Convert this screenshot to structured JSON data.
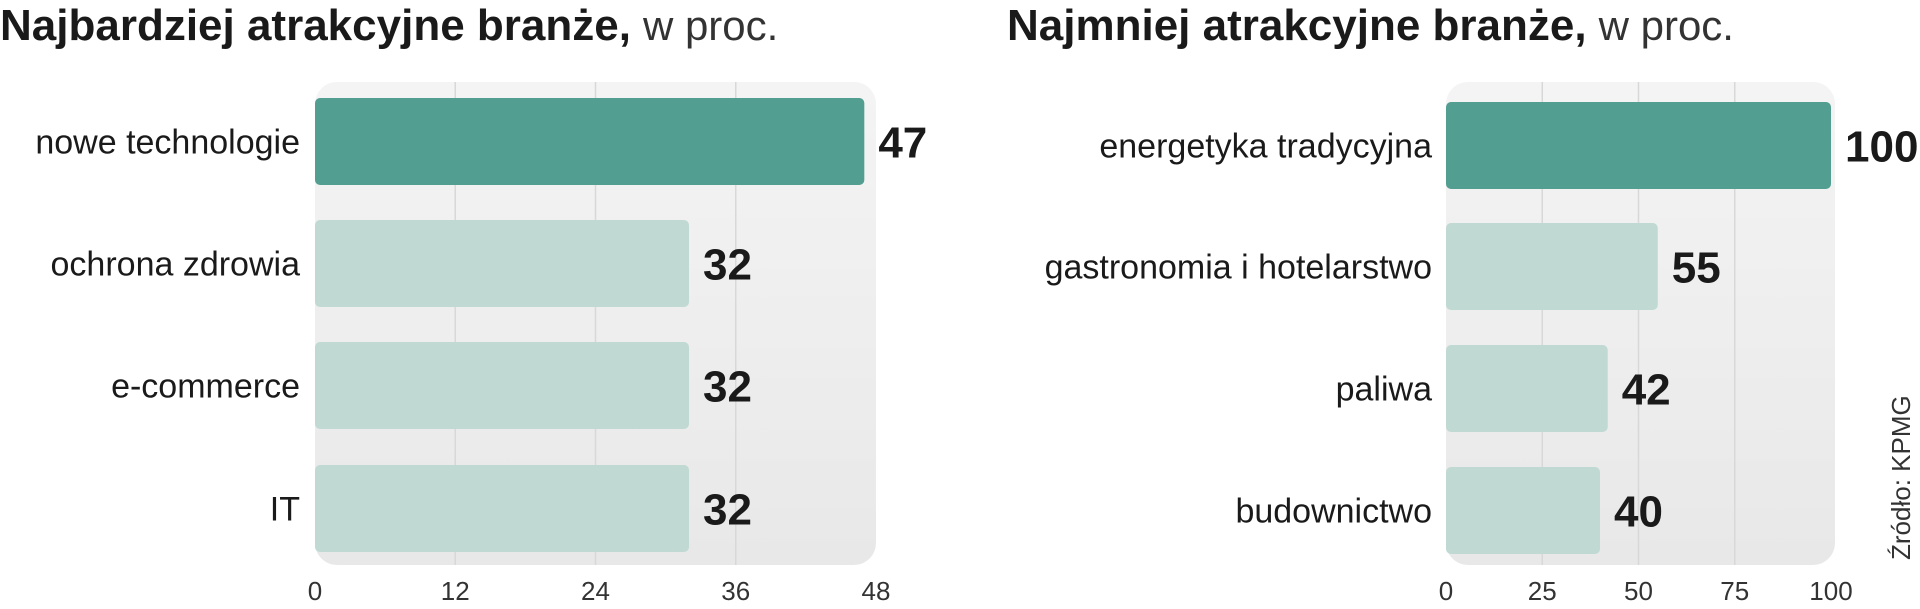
{
  "chart_data": [
    {
      "type": "bar",
      "orientation": "horizontal",
      "title": "Najbardziej atrakcyjne branże,",
      "subtitle": "w proc.",
      "categories": [
        "nowe technologie",
        "ochrona zdrowia",
        "e-commerce",
        "IT"
      ],
      "values": [
        47,
        32,
        32,
        32
      ],
      "highlight_index": 0,
      "xlim": [
        0,
        48
      ],
      "xticks": [
        0,
        12,
        24,
        36,
        48
      ],
      "tick_labels": [
        "0",
        "12",
        "24",
        "36",
        "48"
      ],
      "grid": true,
      "colors": {
        "highlight": "#529e90",
        "normal": "#c0d9d3",
        "panel": "#efefef"
      }
    },
    {
      "type": "bar",
      "orientation": "horizontal",
      "title": "Najmniej atrakcyjne branże,",
      "subtitle": "w proc.",
      "categories": [
        "energetyka tradycyjna",
        "gastronomia i hotelarstwo",
        "paliwa",
        "budownictwo"
      ],
      "values": [
        100,
        55,
        42,
        40
      ],
      "highlight_index": 0,
      "xlim": [
        0,
        100
      ],
      "xticks": [
        0,
        25,
        50,
        75,
        100
      ],
      "tick_labels": [
        "0",
        "25",
        "50",
        "75",
        "100"
      ],
      "grid": true,
      "colors": {
        "highlight": "#529e90",
        "normal": "#c0d9d3",
        "panel": "#efefef"
      }
    }
  ],
  "source": "Źródło: KPMG"
}
